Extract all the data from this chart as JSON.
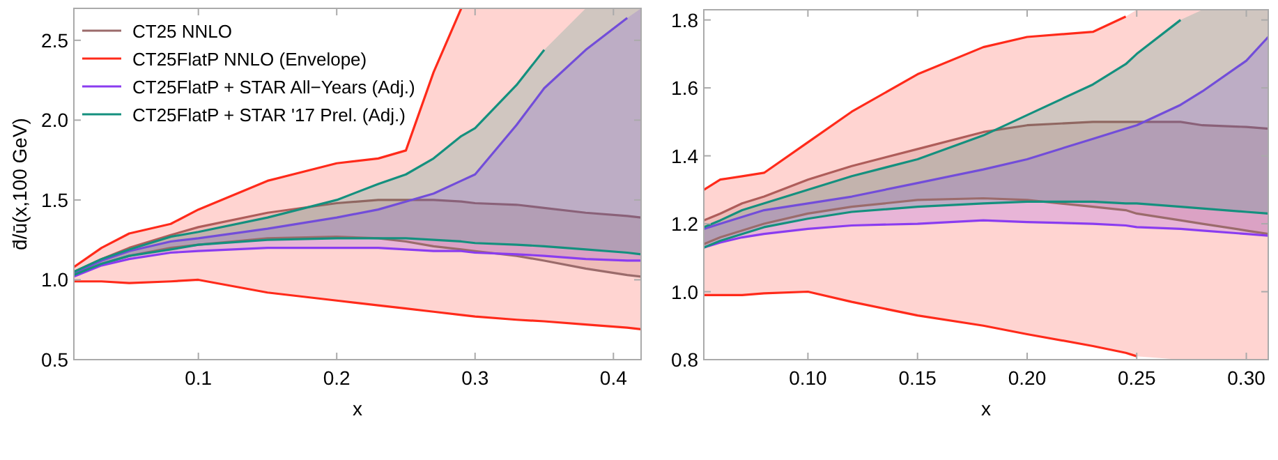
{
  "chart_data": [
    {
      "type": "line",
      "ylabel": "d̄/ū(x,100 GeV)",
      "xlabel": "x",
      "legend": "top left",
      "grid": false,
      "xlim": [
        0.01,
        0.42
      ],
      "ylim": [
        0.5,
        2.7
      ],
      "xticks": [
        {
          "value": 0.1,
          "label": "0.1"
        },
        {
          "value": 0.2,
          "label": "0.2"
        },
        {
          "value": 0.3,
          "label": "0.3"
        },
        {
          "value": 0.4,
          "label": "0.4"
        }
      ],
      "yticks": [
        {
          "value": 0.5,
          "label": "0.5"
        },
        {
          "value": 1,
          "label": "1.0"
        },
        {
          "value": 1.5,
          "label": "1.5"
        },
        {
          "value": 2,
          "label": "2.0"
        },
        {
          "value": 2.5,
          "label": "2.5"
        }
      ],
      "x": [
        0.01,
        0.03,
        0.05,
        0.08,
        0.1,
        0.15,
        0.2,
        0.23,
        0.25,
        0.27,
        0.29,
        0.3,
        0.33,
        0.35,
        0.38,
        0.41,
        0.42
      ],
      "series": [
        {
          "name": "CT25 NNLO",
          "color": "#9b6b6b",
          "values": [
            1.05,
            1.13,
            1.2,
            1.28,
            1.33,
            1.42,
            1.48,
            1.5,
            1.5,
            1.5,
            1.49,
            1.48,
            1.47,
            1.45,
            1.42,
            1.4,
            1.39
          ],
          "upper": [
            1.05,
            1.13,
            1.2,
            1.28,
            1.33,
            1.42,
            1.48,
            1.5,
            1.5,
            1.5,
            1.49,
            1.48,
            1.47,
            1.45,
            1.42,
            1.4,
            1.39
          ],
          "lower": [
            1.03,
            1.1,
            1.15,
            1.2,
            1.22,
            1.26,
            1.27,
            1.26,
            1.24,
            1.21,
            1.19,
            1.18,
            1.15,
            1.12,
            1.07,
            1.03,
            1.02
          ]
        },
        {
          "name": "CT25FlatP NNLO (Envelope)",
          "color": "#ff2a1a",
          "values": [
            1.08,
            1.2,
            1.29,
            1.35,
            1.44,
            1.62,
            1.73,
            1.76,
            1.81,
            2.3,
            2.7,
            null,
            null,
            null,
            null,
            null,
            null
          ],
          "upper": [
            1.08,
            1.2,
            1.29,
            1.35,
            1.44,
            1.62,
            1.73,
            1.76,
            1.81,
            2.3,
            2.7,
            2.7,
            2.7,
            2.7,
            2.7,
            2.7,
            2.7
          ],
          "lower": [
            0.99,
            0.99,
            0.98,
            0.99,
            1.0,
            0.92,
            0.87,
            0.84,
            0.82,
            0.8,
            0.78,
            0.77,
            0.75,
            0.74,
            0.72,
            0.7,
            0.69
          ]
        },
        {
          "name": "CT25FlatP + STAR All−Years (Adj.)",
          "color": "#8a3cf0",
          "values": [
            1.04,
            1.12,
            1.18,
            1.24,
            1.26,
            1.32,
            1.39,
            1.44,
            1.49,
            1.54,
            1.62,
            1.66,
            1.97,
            2.2,
            2.44,
            2.64,
            null
          ],
          "upper": [
            1.04,
            1.12,
            1.18,
            1.24,
            1.26,
            1.32,
            1.39,
            1.44,
            1.49,
            1.54,
            1.62,
            1.66,
            1.97,
            2.2,
            2.44,
            2.64,
            2.7
          ],
          "lower": [
            1.02,
            1.09,
            1.13,
            1.17,
            1.18,
            1.2,
            1.2,
            1.2,
            1.19,
            1.18,
            1.18,
            1.17,
            1.16,
            1.15,
            1.13,
            1.12,
            1.12
          ]
        },
        {
          "name": "CT25FlatP + STAR '17 Prel. (Adj.)",
          "color": "#14907e",
          "values": [
            1.05,
            1.13,
            1.19,
            1.27,
            1.3,
            1.39,
            1.5,
            1.6,
            1.66,
            1.76,
            1.9,
            1.95,
            2.22,
            2.44,
            null,
            null,
            null
          ],
          "upper": [
            1.05,
            1.13,
            1.19,
            1.27,
            1.3,
            1.39,
            1.5,
            1.6,
            1.66,
            1.76,
            1.9,
            1.95,
            2.22,
            2.44,
            2.7,
            2.7,
            2.7
          ],
          "lower": [
            1.03,
            1.1,
            1.15,
            1.19,
            1.22,
            1.25,
            1.26,
            1.26,
            1.26,
            1.25,
            1.24,
            1.23,
            1.22,
            1.21,
            1.19,
            1.17,
            1.16
          ]
        },
        {
          "color": "#9b6b6b",
          "values": [
            1.03,
            1.1,
            1.15,
            1.2,
            1.22,
            1.26,
            1.27,
            1.26,
            1.24,
            1.21,
            1.19,
            1.18,
            1.15,
            1.12,
            1.07,
            1.03,
            1.02
          ]
        },
        {
          "color": "#ff2a1a",
          "values": [
            0.99,
            0.99,
            0.98,
            0.99,
            1.0,
            0.92,
            0.87,
            0.84,
            0.82,
            0.8,
            0.78,
            0.77,
            0.75,
            0.74,
            0.72,
            0.7,
            0.69
          ]
        },
        {
          "color": "#8a3cf0",
          "values": [
            1.02,
            1.09,
            1.13,
            1.17,
            1.18,
            1.2,
            1.2,
            1.2,
            1.19,
            1.18,
            1.18,
            1.17,
            1.16,
            1.15,
            1.13,
            1.12,
            1.12
          ]
        },
        {
          "color": "#14907e",
          "values": [
            1.03,
            1.1,
            1.15,
            1.19,
            1.22,
            1.25,
            1.26,
            1.26,
            1.26,
            1.25,
            1.24,
            1.23,
            1.22,
            1.21,
            1.19,
            1.17,
            1.16
          ]
        }
      ]
    },
    {
      "type": "line",
      "xlabel": "x",
      "legend": false,
      "grid": false,
      "xlim": [
        0.0525,
        0.31
      ],
      "ylim": [
        0.8,
        1.83
      ],
      "xticks": [
        {
          "value": 0.1,
          "label": "0.10"
        },
        {
          "value": 0.15,
          "label": "0.15"
        },
        {
          "value": 0.2,
          "label": "0.20"
        },
        {
          "value": 0.25,
          "label": "0.25"
        },
        {
          "value": 0.3,
          "label": "0.30"
        }
      ],
      "yticks": [
        {
          "value": 0.8,
          "label": "0.8"
        },
        {
          "value": 1,
          "label": "1.0"
        },
        {
          "value": 1.2,
          "label": "1.2"
        },
        {
          "value": 1.4,
          "label": "1.4"
        },
        {
          "value": 1.6,
          "label": "1.6"
        },
        {
          "value": 1.8,
          "label": "1.8"
        }
      ],
      "x": [
        0.0525,
        0.06,
        0.07,
        0.08,
        0.1,
        0.12,
        0.15,
        0.18,
        0.2,
        0.23,
        0.245,
        0.25,
        0.27,
        0.28,
        0.3,
        0.31
      ],
      "series": [
        {
          "color": "#9b6b6b",
          "values": [
            1.21,
            1.23,
            1.26,
            1.28,
            1.33,
            1.37,
            1.42,
            1.47,
            1.49,
            1.5,
            1.5,
            1.5,
            1.5,
            1.49,
            1.485,
            1.48
          ],
          "upper": [
            1.21,
            1.23,
            1.26,
            1.28,
            1.33,
            1.37,
            1.42,
            1.47,
            1.49,
            1.5,
            1.5,
            1.5,
            1.5,
            1.49,
            1.485,
            1.48
          ],
          "lower": [
            1.14,
            1.16,
            1.18,
            1.2,
            1.23,
            1.25,
            1.27,
            1.275,
            1.27,
            1.25,
            1.24,
            1.23,
            1.21,
            1.2,
            1.18,
            1.17
          ]
        },
        {
          "color": "#ff2a1a",
          "values": [
            1.3,
            1.33,
            1.34,
            1.35,
            1.44,
            1.53,
            1.64,
            1.72,
            1.75,
            1.765,
            1.81,
            null,
            null,
            null,
            null,
            null
          ],
          "upper": [
            1.3,
            1.33,
            1.34,
            1.35,
            1.44,
            1.53,
            1.64,
            1.72,
            1.75,
            1.765,
            1.81,
            1.83,
            1.83,
            1.83,
            1.83,
            1.83
          ],
          "lower": [
            0.99,
            0.99,
            0.99,
            0.995,
            1.0,
            0.97,
            0.93,
            0.9,
            0.875,
            0.84,
            0.82,
            0.81,
            0.8,
            0.8,
            0.8,
            0.8
          ]
        },
        {
          "color": "#8a3cf0",
          "values": [
            1.185,
            1.2,
            1.22,
            1.24,
            1.26,
            1.28,
            1.32,
            1.36,
            1.39,
            1.45,
            1.48,
            1.49,
            1.55,
            1.59,
            1.68,
            1.75
          ],
          "upper": [
            1.185,
            1.2,
            1.22,
            1.24,
            1.26,
            1.28,
            1.32,
            1.36,
            1.39,
            1.45,
            1.48,
            1.49,
            1.55,
            1.59,
            1.68,
            1.75
          ],
          "lower": [
            1.13,
            1.145,
            1.16,
            1.17,
            1.185,
            1.195,
            1.2,
            1.21,
            1.205,
            1.2,
            1.195,
            1.19,
            1.185,
            1.18,
            1.17,
            1.165
          ]
        },
        {
          "color": "#14907e",
          "values": [
            1.19,
            1.21,
            1.24,
            1.26,
            1.3,
            1.34,
            1.39,
            1.46,
            1.52,
            1.61,
            1.67,
            1.7,
            1.8,
            null,
            null,
            null
          ],
          "upper": [
            1.19,
            1.21,
            1.24,
            1.26,
            1.3,
            1.34,
            1.39,
            1.46,
            1.52,
            1.61,
            1.67,
            1.7,
            1.8,
            1.83,
            1.83,
            1.83
          ],
          "lower": [
            1.13,
            1.15,
            1.17,
            1.19,
            1.215,
            1.235,
            1.25,
            1.26,
            1.265,
            1.265,
            1.26,
            1.26,
            1.25,
            1.245,
            1.235,
            1.23
          ]
        },
        {
          "color": "#9b6b6b",
          "values": [
            1.14,
            1.16,
            1.18,
            1.2,
            1.23,
            1.25,
            1.27,
            1.275,
            1.27,
            1.25,
            1.24,
            1.23,
            1.21,
            1.2,
            1.18,
            1.17
          ]
        },
        {
          "color": "#ff2a1a",
          "values": [
            0.99,
            0.99,
            0.99,
            0.995,
            1.0,
            0.97,
            0.93,
            0.9,
            0.875,
            0.84,
            0.82,
            0.81,
            null,
            null,
            null,
            null
          ]
        },
        {
          "color": "#8a3cf0",
          "values": [
            1.13,
            1.145,
            1.16,
            1.17,
            1.185,
            1.195,
            1.2,
            1.21,
            1.205,
            1.2,
            1.195,
            1.19,
            1.185,
            1.18,
            1.17,
            1.165
          ]
        },
        {
          "color": "#14907e",
          "values": [
            1.13,
            1.15,
            1.17,
            1.19,
            1.215,
            1.235,
            1.25,
            1.26,
            1.265,
            1.265,
            1.26,
            1.26,
            1.25,
            1.245,
            1.235,
            1.23
          ]
        }
      ]
    }
  ]
}
